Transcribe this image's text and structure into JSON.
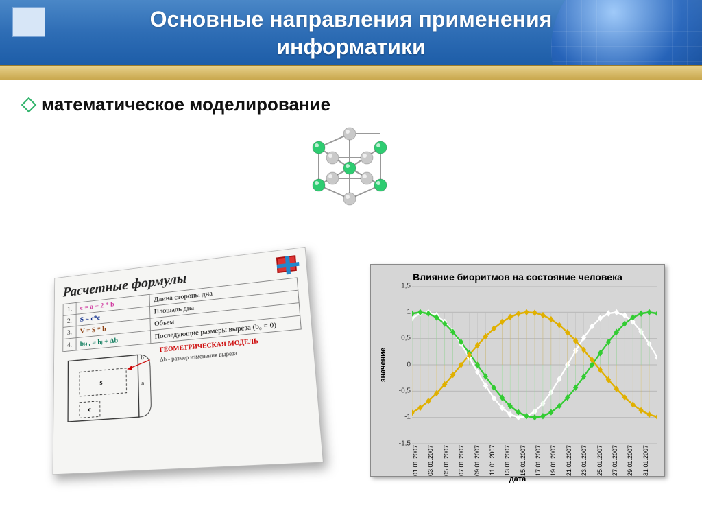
{
  "header": {
    "title_line1": "Основные направления применения",
    "title_line2": "информатики",
    "title_color": "#ffffff",
    "bg_gradient": [
      "#4a87c7",
      "#2e6db5",
      "#1d5da8"
    ],
    "band_gradient": [
      "#e7d08a",
      "#c9a84e"
    ]
  },
  "bullet": {
    "text": "математическое моделирование",
    "color": "#111111",
    "bullet_border": "#2fb36a",
    "fontsize": 26
  },
  "molecule": {
    "atom_colors": {
      "green": "#2ecc71",
      "grey": "#c9c9c9"
    },
    "bond_color": "#999999"
  },
  "formula_card": {
    "title": "Расчетные формулы",
    "rows": [
      {
        "idx": "1.",
        "formula": "c = a − 2 * b",
        "desc": "Длина стороны дна",
        "color": "#d03aa0"
      },
      {
        "idx": "2.",
        "formula": "S = c*c",
        "desc": "Площадь дна",
        "color": "#0a2a8a"
      },
      {
        "idx": "3.",
        "formula": "V = S * b",
        "desc": "Объем",
        "color": "#8a3b0a"
      },
      {
        "idx": "4.",
        "formula": "bⱼ₊₁ = bⱼ + Δb",
        "desc": "Последующие размеры выреза (b₀ = 0)",
        "color": "#0a7a5a"
      }
    ],
    "geom_label": "ГЕОМЕТРИЧЕСКАЯ МОДЕЛЬ",
    "note": "Δb - размер изменения выреза",
    "letters": {
      "a": "a",
      "b": "b",
      "c": "c",
      "s": "s"
    }
  },
  "biorhythm_chart": {
    "type": "line",
    "title": "Влияние биоритмов на состояние человека",
    "xlabel": "дата",
    "ylabel": "значение",
    "background": "#d6d6d6",
    "border": "#8a8a8a",
    "grid_color": "#bdbdbd",
    "marker": "diamond",
    "marker_size": 6,
    "line_width": 2,
    "ylim": [
      -1.5,
      1.5
    ],
    "ytick_step": 0.5,
    "yticks": [
      "1,5",
      "1",
      "0,5",
      "0",
      "-0,5",
      "-1",
      "-1,5"
    ],
    "xticks": [
      "01.01.2007",
      "03.01.2007",
      "05.01.2007",
      "07.01.2007",
      "09.01.2007",
      "11.01.2007",
      "13.01.2007",
      "15.01.2007",
      "17.01.2007",
      "19.01.2007",
      "21.01.2007",
      "23.01.2007",
      "25.01.2007",
      "27.01.2007",
      "29.01.2007",
      "31.01.2007"
    ],
    "series": [
      {
        "name": "white",
        "color": "#ffffff",
        "period_days": 23,
        "phase_days": -4
      },
      {
        "name": "green",
        "color": "#33cc33",
        "period_days": 28,
        "phase_days": -6
      },
      {
        "name": "yellow",
        "color": "#e0b000",
        "period_days": 33,
        "phase_days": 6
      }
    ]
  }
}
